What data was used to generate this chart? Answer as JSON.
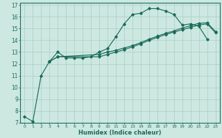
{
  "xlabel": "Humidex (Indice chaleur)",
  "background_color": "#cce8e0",
  "grid_color": "#aaccC4",
  "line_color": "#1a6b5a",
  "xlim": [
    -0.5,
    23.5
  ],
  "ylim": [
    7,
    17.2
  ],
  "yticks": [
    7,
    8,
    9,
    10,
    11,
    12,
    13,
    14,
    15,
    16,
    17
  ],
  "xticks": [
    0,
    1,
    2,
    3,
    4,
    5,
    6,
    7,
    8,
    9,
    10,
    11,
    12,
    13,
    14,
    15,
    16,
    17,
    18,
    19,
    20,
    21,
    22,
    23
  ],
  "series": [
    {
      "x": [
        0,
        1,
        2,
        3,
        4,
        5,
        6,
        7,
        8,
        9,
        10,
        11,
        12,
        13,
        14,
        15,
        16,
        17,
        18,
        19,
        20,
        21,
        22
      ],
      "y": [
        7.5,
        7.1,
        11.0,
        12.2,
        13.0,
        12.5,
        12.5,
        12.5,
        12.6,
        13.0,
        13.3,
        14.3,
        15.4,
        16.2,
        16.3,
        16.7,
        16.7,
        16.5,
        16.2,
        15.3,
        15.4,
        15.2,
        14.1
      ]
    },
    {
      "x": [
        3,
        4,
        9,
        10,
        11,
        12,
        13,
        14,
        15,
        16,
        17,
        18,
        19,
        20,
        21,
        22,
        23
      ],
      "y": [
        12.2,
        12.6,
        12.8,
        13.0,
        13.15,
        13.35,
        13.55,
        13.8,
        14.1,
        14.35,
        14.6,
        14.8,
        15.05,
        15.25,
        15.45,
        15.5,
        14.75
      ]
    },
    {
      "x": [
        3,
        4,
        9,
        10,
        11,
        12,
        13,
        14,
        15,
        16,
        17,
        18,
        19,
        20,
        21,
        22,
        23
      ],
      "y": [
        12.2,
        12.6,
        12.6,
        12.8,
        13.0,
        13.2,
        13.45,
        13.7,
        14.0,
        14.25,
        14.5,
        14.7,
        14.9,
        15.1,
        15.3,
        15.4,
        14.65
      ]
    }
  ]
}
